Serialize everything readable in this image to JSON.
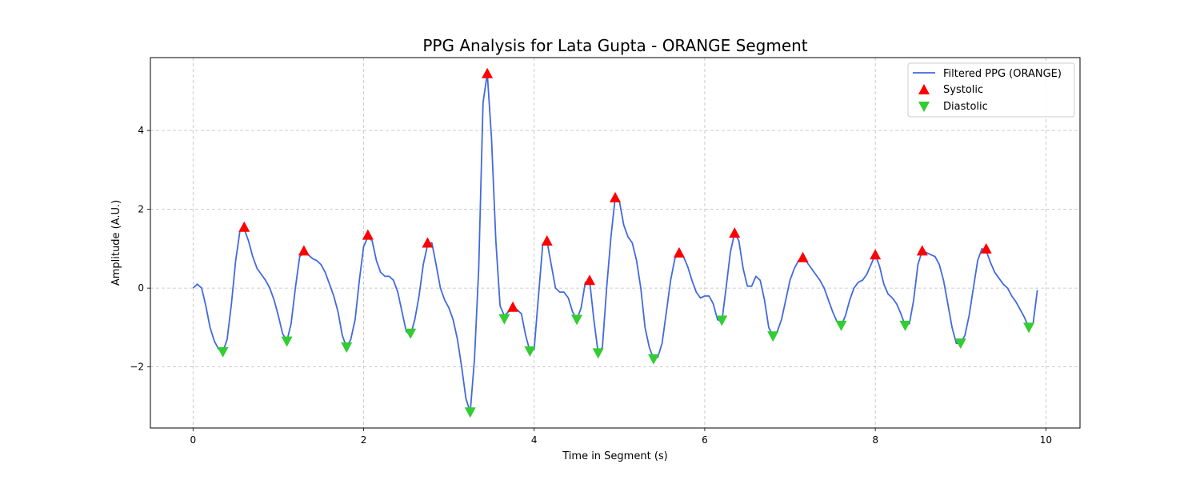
{
  "chart_data": {
    "type": "line",
    "title": "PPG Analysis for Lata Gupta - ORANGE Segment",
    "xlabel": "Time in Segment (s)",
    "ylabel": "Amplitude (A.U.)",
    "xlim": [
      -0.5,
      10.4
    ],
    "ylim": [
      -3.55,
      5.85
    ],
    "xticks": [
      0,
      2,
      4,
      6,
      8,
      10
    ],
    "yticks": [
      -2,
      0,
      2,
      4
    ],
    "grid": true,
    "legend_position": "top-right",
    "colors": {
      "line": "#4169e1",
      "systolic": "#ff0000",
      "diastolic": "#32cd32"
    },
    "series": [
      {
        "name": "Filtered PPG (ORANGE)",
        "kind": "line",
        "x": [
          0,
          0.05,
          0.1,
          0.15,
          0.2,
          0.25,
          0.3,
          0.35,
          0.4,
          0.45,
          0.5,
          0.55,
          0.6,
          0.65,
          0.7,
          0.75,
          0.8,
          0.85,
          0.9,
          0.95,
          1.0,
          1.05,
          1.1,
          1.15,
          1.2,
          1.25,
          1.3,
          1.35,
          1.4,
          1.45,
          1.5,
          1.55,
          1.6,
          1.65,
          1.7,
          1.75,
          1.8,
          1.85,
          1.9,
          1.95,
          2.0,
          2.05,
          2.1,
          2.15,
          2.2,
          2.25,
          2.3,
          2.35,
          2.4,
          2.45,
          2.5,
          2.55,
          2.6,
          2.65,
          2.7,
          2.75,
          2.8,
          2.85,
          2.9,
          2.95,
          3.0,
          3.05,
          3.1,
          3.15,
          3.2,
          3.25,
          3.3,
          3.35,
          3.4,
          3.45,
          3.5,
          3.55,
          3.6,
          3.65,
          3.7,
          3.75,
          3.8,
          3.85,
          3.9,
          3.95,
          4.0,
          4.05,
          4.1,
          4.15,
          4.2,
          4.25,
          4.3,
          4.35,
          4.4,
          4.45,
          4.5,
          4.55,
          4.6,
          4.65,
          4.7,
          4.75,
          4.8,
          4.85,
          4.9,
          4.95,
          5.0,
          5.05,
          5.1,
          5.15,
          5.2,
          5.25,
          5.3,
          5.35,
          5.4,
          5.45,
          5.5,
          5.55,
          5.6,
          5.65,
          5.7,
          5.75,
          5.8,
          5.85,
          5.9,
          5.95,
          6.0,
          6.05,
          6.1,
          6.15,
          6.2,
          6.25,
          6.3,
          6.35,
          6.4,
          6.45,
          6.5,
          6.55,
          6.6,
          6.65,
          6.7,
          6.75,
          6.8,
          6.85,
          6.9,
          6.95,
          7.0,
          7.05,
          7.1,
          7.15,
          7.2,
          7.25,
          7.3,
          7.35,
          7.4,
          7.45,
          7.5,
          7.55,
          7.6,
          7.65,
          7.7,
          7.75,
          7.8,
          7.85,
          7.9,
          7.95,
          8.0,
          8.05,
          8.1,
          8.15,
          8.2,
          8.25,
          8.3,
          8.35,
          8.4,
          8.45,
          8.5,
          8.55,
          8.6,
          8.65,
          8.7,
          8.75,
          8.8,
          8.85,
          8.9,
          8.95,
          9.0,
          9.05,
          9.1,
          9.15,
          9.2,
          9.25,
          9.3,
          9.35,
          9.4,
          9.45,
          9.5,
          9.55,
          9.6,
          9.65,
          9.7,
          9.75,
          9.8,
          9.85,
          9.9
        ],
        "y": [
          0.0,
          0.1,
          0.0,
          -0.45,
          -1.0,
          -1.35,
          -1.55,
          -1.62,
          -1.3,
          -0.4,
          0.7,
          1.45,
          1.5,
          1.2,
          0.8,
          0.5,
          0.35,
          0.2,
          0.0,
          -0.3,
          -0.7,
          -1.15,
          -1.35,
          -0.9,
          0.0,
          0.8,
          0.9,
          0.85,
          0.75,
          0.7,
          0.6,
          0.4,
          0.1,
          -0.2,
          -0.6,
          -1.2,
          -1.5,
          -1.3,
          -0.8,
          0.2,
          1.05,
          1.3,
          1.2,
          0.7,
          0.4,
          0.3,
          0.3,
          0.2,
          -0.1,
          -0.6,
          -1.1,
          -1.2,
          -0.8,
          -0.2,
          0.6,
          1.1,
          1.15,
          0.6,
          0.0,
          -0.3,
          -0.5,
          -0.8,
          -1.3,
          -2.0,
          -2.8,
          -3.15,
          -1.8,
          0.5,
          4.7,
          5.45,
          3.8,
          1.2,
          -0.45,
          -0.7,
          -0.6,
          -0.5,
          -0.55,
          -0.65,
          -1.2,
          -1.6,
          -1.55,
          -0.2,
          1.1,
          1.2,
          0.6,
          0.0,
          -0.1,
          -0.1,
          -0.25,
          -0.6,
          -0.8,
          -0.5,
          0.15,
          0.2,
          -0.8,
          -1.65,
          -1.5,
          0.0,
          1.3,
          2.3,
          2.2,
          1.6,
          1.3,
          1.15,
          0.7,
          0.0,
          -1.0,
          -1.5,
          -1.8,
          -1.75,
          -1.4,
          -0.6,
          0.2,
          0.75,
          0.9,
          0.8,
          0.55,
          0.2,
          -0.1,
          -0.25,
          -0.2,
          -0.2,
          -0.4,
          -0.8,
          -0.85,
          0.0,
          0.9,
          1.4,
          1.2,
          0.5,
          0.05,
          0.05,
          0.3,
          0.2,
          -0.3,
          -1.0,
          -1.2,
          -1.1,
          -0.8,
          -0.3,
          0.2,
          0.5,
          0.7,
          0.75,
          0.65,
          0.5,
          0.35,
          0.2,
          0.0,
          -0.3,
          -0.6,
          -0.85,
          -0.95,
          -0.7,
          -0.3,
          0.0,
          0.15,
          0.2,
          0.35,
          0.6,
          0.85,
          0.55,
          0.1,
          -0.15,
          -0.25,
          -0.4,
          -0.65,
          -0.95,
          -0.9,
          -0.3,
          0.6,
          0.95,
          0.9,
          0.85,
          0.8,
          0.6,
          0.2,
          -0.4,
          -1.0,
          -1.4,
          -1.4,
          -1.2,
          -0.7,
          0.0,
          0.7,
          1.0,
          0.95,
          0.65,
          0.4,
          0.25,
          0.1,
          0.0,
          -0.2,
          -0.35,
          -0.55,
          -0.75,
          -1.0,
          -0.9,
          -0.05
        ]
      },
      {
        "name": "Systolic",
        "kind": "marker-up",
        "x": [
          0.6,
          1.3,
          2.05,
          2.75,
          3.45,
          3.75,
          4.15,
          4.65,
          4.95,
          5.7,
          6.35,
          7.15,
          8.0,
          8.55,
          9.3
        ],
        "y": [
          1.55,
          0.95,
          1.35,
          1.15,
          5.45,
          -0.48,
          1.2,
          0.2,
          2.3,
          0.9,
          1.4,
          0.78,
          0.85,
          0.95,
          1.0
        ]
      },
      {
        "name": "Diastolic",
        "kind": "marker-down",
        "x": [
          0.35,
          1.1,
          1.8,
          2.55,
          3.25,
          3.65,
          3.95,
          4.5,
          4.75,
          5.4,
          6.2,
          6.8,
          7.6,
          8.35,
          9.0,
          9.8
        ],
        "y": [
          -1.62,
          -1.35,
          -1.5,
          -1.15,
          -3.15,
          -0.78,
          -1.6,
          -0.8,
          -1.65,
          -1.8,
          -0.82,
          -1.22,
          -0.95,
          -0.95,
          -1.4,
          -1.0
        ]
      }
    ]
  }
}
